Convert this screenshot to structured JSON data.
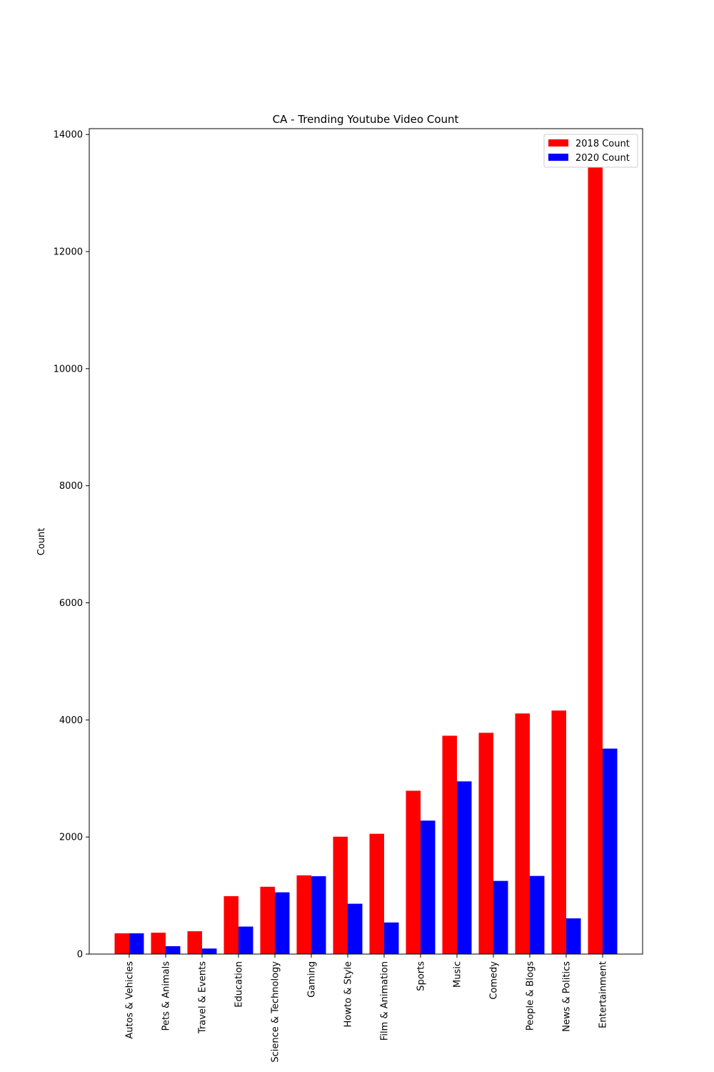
{
  "chart_data": {
    "type": "bar",
    "title": "CA - Trending Youtube Video Count",
    "xlabel": "",
    "ylabel": "Count",
    "ylim": [
      0,
      14100
    ],
    "yticks": [
      0,
      2000,
      4000,
      6000,
      8000,
      10000,
      12000,
      14000
    ],
    "grid": false,
    "legend_position": "top-right",
    "categories": [
      "Autos & Vehicles",
      "Pets & Animals",
      "Travel & Events",
      "Education",
      "Science & Technology",
      "Gaming",
      "Howto & Style",
      "Film & Animation",
      "Sports",
      "Music",
      "Comedy",
      "People & Blogs",
      "News & Politics",
      "Entertainment"
    ],
    "series": [
      {
        "name": "2018 Count",
        "color": "#ff0000",
        "values": [
          355,
          365,
          390,
          990,
          1150,
          1345,
          2005,
          2055,
          2790,
          3730,
          3780,
          4110,
          4160,
          13470
        ]
      },
      {
        "name": "2020 Count",
        "color": "#0000ff",
        "values": [
          355,
          135,
          95,
          470,
          1055,
          1330,
          860,
          540,
          2280,
          2950,
          1250,
          1335,
          610,
          3510
        ]
      }
    ]
  }
}
